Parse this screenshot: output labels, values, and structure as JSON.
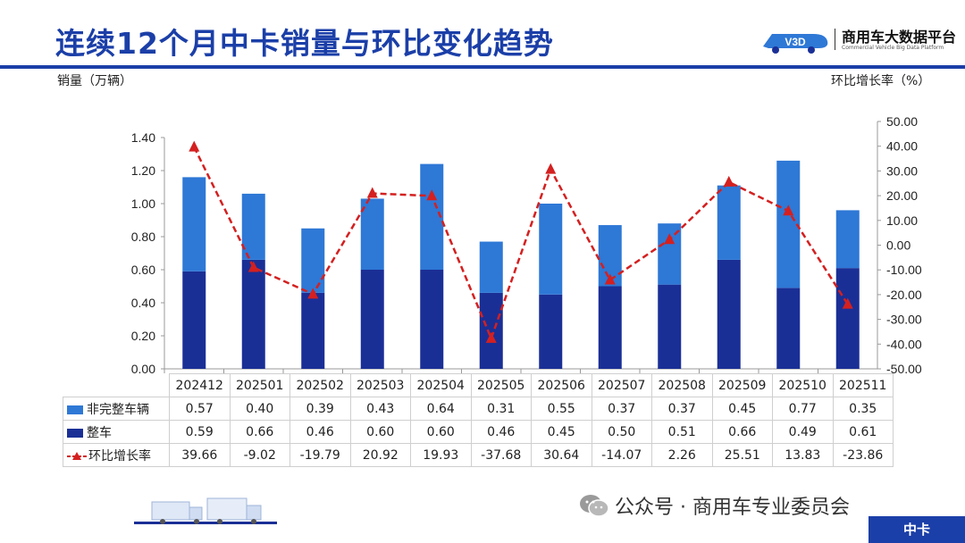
{
  "header": {
    "title": "连续12个月中卡销量与环比变化趋势",
    "logo_mark": "V3D",
    "logo_name": "商用车大数据平台",
    "logo_sub": "Commercial Vehicle Big Data Platform"
  },
  "axes": {
    "left_label": "销量（万辆）",
    "right_label": "环比增长率（%）"
  },
  "footer": {
    "account": "公众号 · 商用车专业委员会",
    "badge": "中卡"
  },
  "colors": {
    "dark_bar": "#1a2f96",
    "light_bar": "#2e78d6",
    "line": "#d42020",
    "title": "#1b3fa8"
  },
  "chart_data": {
    "type": "bar",
    "stacked": true,
    "categories": [
      "202412",
      "202501",
      "202502",
      "202503",
      "202504",
      "202505",
      "202506",
      "202507",
      "202508",
      "202509",
      "202510",
      "202511"
    ],
    "series": [
      {
        "name": "非完整车辆",
        "axis": "left",
        "type": "bar",
        "values": [
          0.57,
          0.4,
          0.39,
          0.43,
          0.64,
          0.31,
          0.55,
          0.37,
          0.37,
          0.45,
          0.77,
          0.35
        ]
      },
      {
        "name": "整车",
        "axis": "left",
        "type": "bar",
        "values": [
          0.59,
          0.66,
          0.46,
          0.6,
          0.6,
          0.46,
          0.45,
          0.5,
          0.51,
          0.66,
          0.49,
          0.61
        ]
      },
      {
        "name": "环比增长率",
        "axis": "right",
        "type": "line",
        "values": [
          39.66,
          -9.02,
          -19.79,
          20.92,
          19.93,
          -37.68,
          30.64,
          -14.07,
          2.26,
          25.51,
          13.83,
          -23.86
        ]
      }
    ],
    "left_ticks": [
      "0.00",
      "0.20",
      "0.40",
      "0.60",
      "0.80",
      "1.00",
      "1.20",
      "1.40"
    ],
    "right_ticks": [
      "50.00",
      "40.00",
      "30.00",
      "20.00",
      "10.00",
      "0.00",
      "-10.00",
      "-20.00",
      "-30.00",
      "-40.00",
      "-50.00"
    ],
    "ylim_left": [
      0,
      1.4
    ],
    "ylim_right": [
      -50,
      50
    ],
    "table_labels": {
      "light": "非完整车辆",
      "dark": "整车",
      "line": "环比增长率"
    },
    "table_rows": {
      "light": [
        "0.57",
        "0.40",
        "0.39",
        "0.43",
        "0.64",
        "0.31",
        "0.55",
        "0.37",
        "0.37",
        "0.45",
        "0.77",
        "0.35"
      ],
      "dark": [
        "0.59",
        "0.66",
        "0.46",
        "0.60",
        "0.60",
        "0.46",
        "0.45",
        "0.50",
        "0.51",
        "0.66",
        "0.49",
        "0.61"
      ],
      "line": [
        "39.66",
        "-9.02",
        "-19.79",
        "20.92",
        "19.93",
        "-37.68",
        "30.64",
        "-14.07",
        "2.26",
        "25.51",
        "13.83",
        "-23.86"
      ]
    }
  }
}
